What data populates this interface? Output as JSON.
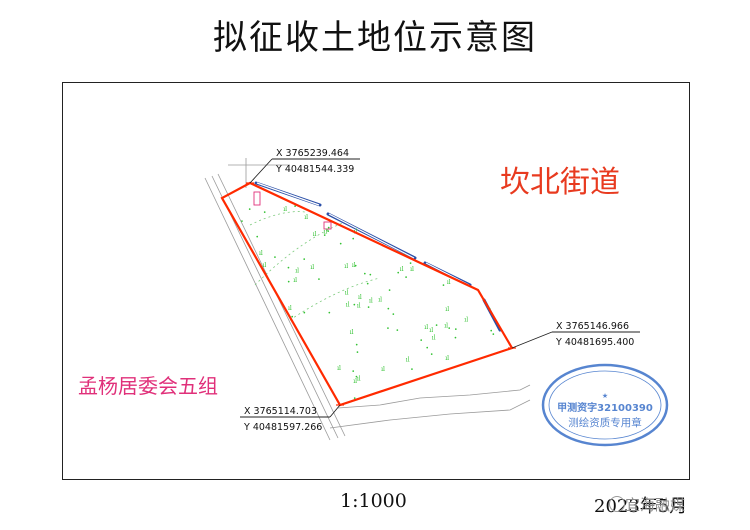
{
  "title": "拟征收土地位示意图",
  "scale": "1:1000",
  "date": "2023年5月",
  "watermark": "宜海融媒",
  "area_labels": {
    "north": "坎北街道",
    "southwest": "孟杨居委会五组"
  },
  "coordinates": [
    {
      "x": "X 3765239.464",
      "y": "Y 40481544.339"
    },
    {
      "x": "X 3765146.966",
      "y": "Y 40481695.400"
    },
    {
      "x": "X 3765114.703",
      "y": "Y 40481597.266"
    }
  ],
  "stamp": {
    "middle": "甲测资字32100390",
    "bottom": "测绘资质专用章"
  },
  "colors": {
    "boundary": "#ff2a00",
    "north_label": "#e83a1f",
    "southwest_label": "#e0307a",
    "stamp": "#3a70c8",
    "road": "#2a4fa8",
    "vegetation": "#33c233"
  }
}
